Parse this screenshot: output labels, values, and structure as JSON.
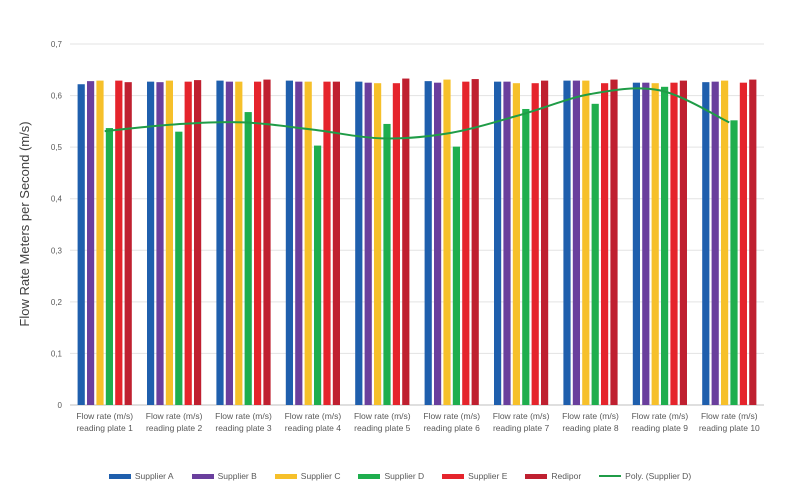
{
  "chart_data": {
    "type": "bar",
    "title": "",
    "xlabel": "",
    "ylabel": "Flow Rate Meters per Second (m/s)",
    "ylim": [
      0,
      0.7
    ],
    "yticks": [
      "0",
      "0,1",
      "0,2",
      "0,3",
      "0,4",
      "0,5",
      "0,6",
      "0,7"
    ],
    "grid": true,
    "legend_position": "bottom",
    "categories": [
      [
        "Flow rate (m/s)",
        "reading plate 1"
      ],
      [
        "Flow rate (m/s)",
        "reading plate 2"
      ],
      [
        "Flow rate (m/s)",
        "reading plate 3"
      ],
      [
        "Flow rate (m/s)",
        "reading plate 4"
      ],
      [
        "Flow rate (m/s)",
        "reading plate 5"
      ],
      [
        "Flow rate (m/s)",
        "reading plate 6"
      ],
      [
        "Flow rate (m/s)",
        "reading plate 7"
      ],
      [
        "Flow rate (m/s)",
        "reading plate 8"
      ],
      [
        "Flow rate (m/s)",
        "reading plate 9"
      ],
      [
        "Flow rate (m/s)",
        "reading plate 10"
      ]
    ],
    "series": [
      {
        "name": "Supplier A",
        "color": "#1f5fad",
        "values": [
          0.622,
          0.627,
          0.629,
          0.629,
          0.627,
          0.628,
          0.627,
          0.629,
          0.625,
          0.626
        ]
      },
      {
        "name": "Supplier B",
        "color": "#6a3f9d",
        "values": [
          0.628,
          0.626,
          0.627,
          0.627,
          0.625,
          0.625,
          0.627,
          0.629,
          0.625,
          0.627
        ]
      },
      {
        "name": "Supplier C",
        "color": "#f6c02a",
        "values": [
          0.629,
          0.629,
          0.627,
          0.627,
          0.624,
          0.631,
          0.624,
          0.629,
          0.624,
          0.629
        ]
      },
      {
        "name": "Supplier D",
        "color": "#1fae4e",
        "values": [
          0.537,
          0.53,
          0.568,
          0.503,
          0.545,
          0.501,
          0.574,
          0.584,
          0.617,
          0.552
        ]
      },
      {
        "name": "Supplier E",
        "color": "#e5242c",
        "values": [
          0.629,
          0.627,
          0.627,
          0.627,
          0.624,
          0.627,
          0.624,
          0.624,
          0.625,
          0.625
        ]
      },
      {
        "name": "Redipor",
        "color": "#bf2030",
        "values": [
          0.626,
          0.63,
          0.631,
          0.627,
          0.633,
          0.632,
          0.629,
          0.631,
          0.629,
          0.631
        ]
      }
    ],
    "trendline": {
      "name": "Poly. (Supplier D)",
      "color": "#1f9c47",
      "values": [
        0.531,
        0.544,
        0.548,
        0.534,
        0.517,
        0.528,
        0.563,
        0.603,
        0.61,
        0.548
      ]
    }
  }
}
